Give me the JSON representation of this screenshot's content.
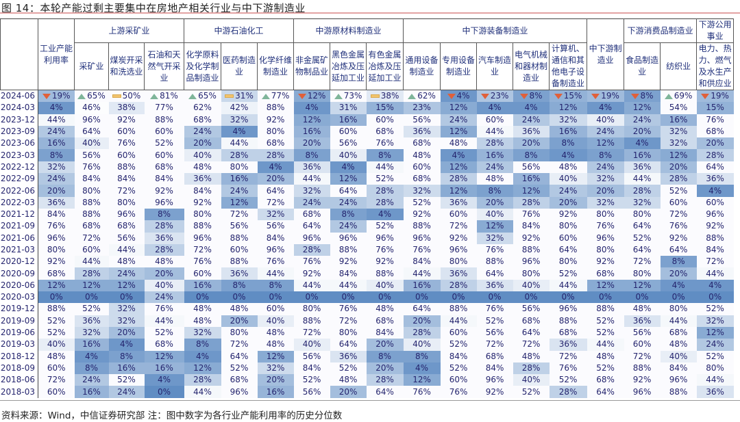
{
  "title": "图 14：本轮产能过剩主要集中在房地产相关行业与中下游制造业",
  "footer": "资料来源：Wind，中信证券研究部  注：图中数字为各行业产能利用率的历史分位数",
  "colors": {
    "heat": "#4f81bd",
    "down": "#e0603a",
    "up": "#7fb59a",
    "flat": "#f2c46e"
  },
  "chart_data": {
    "type": "heatmap",
    "title": "图 14：本轮产能过剩主要集中在房地产相关行业与中下游制造业",
    "unit": "%",
    "groups": [
      {
        "label": "",
        "span": 1
      },
      {
        "label": "上游采矿业",
        "span": 3
      },
      {
        "label": "中游石油化工",
        "span": 3
      },
      {
        "label": "中游原材料制造业",
        "span": 3
      },
      {
        "label": "中下游装备制造业",
        "span": 5
      },
      {
        "label": "",
        "span": 1
      },
      {
        "label": "下游消费品制造业",
        "span": 2
      },
      {
        "label": "下游公用事业",
        "span": 1
      }
    ],
    "columns": [
      "工业产能利用率",
      "采矿业",
      "煤炭开采和洗选业",
      "石油和天然气开采业",
      "化学原料及化学制品制造业",
      "医药制造业",
      "化学纤维制造业",
      "非金属矿物制品业",
      "黑色金属冶炼及压延加工业",
      "有色金属冶炼及压延加工业",
      "通用设备制造业",
      "专用设备制造业",
      "汽车制造业",
      "电气机械和器材制造业",
      "计算机、通信和其他电子设备制造业",
      "中下游制造业",
      "食品制造业",
      "纺织业",
      "电力、热力、燃气及水生产和供应业"
    ],
    "latest_trend": [
      "down",
      "up",
      "flat",
      "up",
      "up",
      "flat",
      "up",
      "down",
      "up",
      "flat",
      "up",
      "down",
      "down",
      "down",
      "down",
      "down",
      "down",
      "up",
      "down"
    ],
    "rows": [
      {
        "date": "2024-06",
        "values": [
          19,
          65,
          50,
          81,
          65,
          31,
          77,
          12,
          73,
          38,
          62,
          4,
          23,
          8,
          15,
          19,
          8,
          69,
          19
        ]
      },
      {
        "date": "2024-03",
        "values": [
          4,
          46,
          38,
          77,
          62,
          42,
          88,
          4,
          31,
          15,
          23,
          12,
          4,
          4,
          12,
          4,
          12,
          54,
          15
        ]
      },
      {
        "date": "2023-12",
        "values": [
          44,
          96,
          92,
          88,
          68,
          32,
          92,
          12,
          16,
          60,
          56,
          24,
          60,
          24,
          32,
          40,
          24,
          16,
          76
        ]
      },
      {
        "date": "2023-09",
        "values": [
          24,
          64,
          60,
          60,
          24,
          4,
          80,
          16,
          60,
          68,
          36,
          12,
          44,
          36,
          16,
          24,
          20,
          32,
          68
        ]
      },
      {
        "date": "2023-06",
        "values": [
          16,
          40,
          76,
          52,
          20,
          44,
          68,
          20,
          56,
          76,
          68,
          48,
          28,
          20,
          8,
          12,
          4,
          32,
          20
        ]
      },
      {
        "date": "2023-03",
        "values": [
          8,
          56,
          60,
          60,
          40,
          28,
          28,
          8,
          40,
          8,
          48,
          4,
          16,
          8,
          4,
          8,
          16,
          12,
          28
        ]
      },
      {
        "date": "2022-12",
        "values": [
          32,
          76,
          88,
          68,
          48,
          80,
          4,
          36,
          4,
          44,
          60,
          12,
          24,
          56,
          48,
          24,
          36,
          20,
          64
        ]
      },
      {
        "date": "2022-09",
        "values": [
          24,
          84,
          84,
          84,
          36,
          16,
          20,
          44,
          12,
          52,
          68,
          28,
          48,
          16,
          40,
          32,
          44,
          28,
          36
        ]
      },
      {
        "date": "2022-06",
        "values": [
          20,
          80,
          72,
          92,
          84,
          24,
          64,
          32,
          64,
          28,
          32,
          12,
          8,
          12,
          24,
          20,
          28,
          52,
          4
        ]
      },
      {
        "date": "2022-03",
        "values": [
          36,
          88,
          80,
          96,
          92,
          12,
          72,
          24,
          24,
          28,
          52,
          36,
          20,
          28,
          20,
          32,
          32,
          60,
          60
        ]
      },
      {
        "date": "2021-12",
        "values": [
          84,
          88,
          96,
          8,
          80,
          72,
          32,
          68,
          8,
          4,
          92,
          60,
          40,
          76,
          92,
          80,
          80,
          72,
          96
        ]
      },
      {
        "date": "2021-09",
        "values": [
          76,
          68,
          68,
          28,
          88,
          56,
          56,
          64,
          24,
          52,
          88,
          72,
          12,
          84,
          80,
          76,
          64,
          76,
          92
        ]
      },
      {
        "date": "2021-06",
        "values": [
          96,
          72,
          56,
          36,
          96,
          88,
          84,
          96,
          96,
          96,
          96,
          92,
          32,
          92,
          60,
          96,
          52,
          92,
          88
        ]
      },
      {
        "date": "2021-03",
        "values": [
          80,
          60,
          44,
          28,
          72,
          60,
          96,
          28,
          88,
          76,
          76,
          96,
          76,
          88,
          64,
          80,
          64,
          64,
          84
        ]
      },
      {
        "date": "2020-12",
        "values": [
          92,
          44,
          48,
          48,
          76,
          88,
          76,
          76,
          92,
          92,
          84,
          80,
          88,
          96,
          80,
          92,
          72,
          8,
          72
        ]
      },
      {
        "date": "2020-09",
        "values": [
          68,
          28,
          24,
          20,
          60,
          36,
          44,
          92,
          84,
          88,
          44,
          36,
          64,
          80,
          52,
          68,
          80,
          20,
          44
        ]
      },
      {
        "date": "2020-06",
        "values": [
          12,
          12,
          12,
          40,
          16,
          8,
          8,
          44,
          44,
          40,
          16,
          28,
          36,
          40,
          44,
          12,
          12,
          4,
          4
        ]
      },
      {
        "date": "2020-03",
        "values": [
          0,
          0,
          0,
          24,
          0,
          0,
          0,
          0,
          0,
          0,
          0,
          0,
          0,
          0,
          0,
          0,
          0,
          0,
          0
        ]
      },
      {
        "date": "2019-12",
        "values": [
          88,
          52,
          32,
          76,
          48,
          48,
          60,
          80,
          76,
          48,
          64,
          88,
          76,
          56,
          96,
          88,
          48,
          80,
          52
        ]
      },
      {
        "date": "2019-09",
        "values": [
          52,
          36,
          32,
          44,
          48,
          20,
          40,
          88,
          72,
          68,
          20,
          44,
          52,
          68,
          88,
          52,
          36,
          44,
          32
        ]
      },
      {
        "date": "2019-06",
        "values": [
          52,
          32,
          20,
          52,
          32,
          80,
          48,
          72,
          80,
          84,
          28,
          60,
          56,
          64,
          68,
          52,
          56,
          68,
          12
        ]
      },
      {
        "date": "2019-03",
        "values": [
          40,
          16,
          4,
          68,
          8,
          72,
          48,
          40,
          64,
          20,
          40,
          52,
          72,
          72,
          36,
          44,
          60,
          48,
          24
        ]
      },
      {
        "date": "2018-12",
        "values": [
          48,
          4,
          8,
          12,
          4,
          64,
          12,
          56,
          36,
          8,
          8,
          84,
          68,
          48,
          72,
          48,
          72,
          40,
          52
        ]
      },
      {
        "date": "2018-09",
        "values": [
          60,
          8,
          16,
          16,
          12,
          52,
          32,
          84,
          52,
          20,
          4,
          52,
          84,
          28,
          76,
          52,
          88,
          84,
          80
        ]
      },
      {
        "date": "2018-06",
        "values": [
          72,
          24,
          52,
          4,
          28,
          68,
          20,
          52,
          48,
          28,
          12,
          60,
          96,
          40,
          52,
          68,
          92,
          96,
          44
        ]
      },
      {
        "date": "2018-03",
        "values": [
          60,
          16,
          24,
          0,
          44,
          96,
          16,
          56,
          20,
          64,
          76,
          76,
          92,
          52,
          28,
          64,
          96,
          88,
          36
        ]
      }
    ]
  }
}
